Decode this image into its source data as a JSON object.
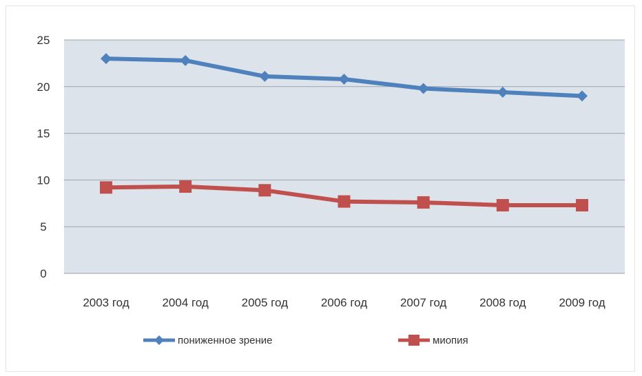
{
  "chart_data": {
    "type": "line",
    "categories": [
      "2003 год",
      "2004 год",
      "2005 год",
      "2006 год",
      "2007 год",
      "2008 год",
      "2009 год"
    ],
    "series": [
      {
        "name": "пониженное зрение",
        "color": "#4f81bd",
        "marker": "diamond",
        "values": [
          23.0,
          22.8,
          21.1,
          20.8,
          19.8,
          19.4,
          19.0
        ]
      },
      {
        "name": "миопия",
        "color": "#c0504d",
        "marker": "square",
        "values": [
          9.2,
          9.3,
          8.9,
          7.7,
          7.6,
          7.3,
          7.3
        ]
      }
    ],
    "ylim": [
      0,
      25
    ],
    "yticks": [
      0,
      5,
      10,
      15,
      20,
      25
    ],
    "grid": true,
    "plot_background": "#dde3ea",
    "legend_position": "bottom",
    "title": "",
    "xlabel": "",
    "ylabel": ""
  }
}
